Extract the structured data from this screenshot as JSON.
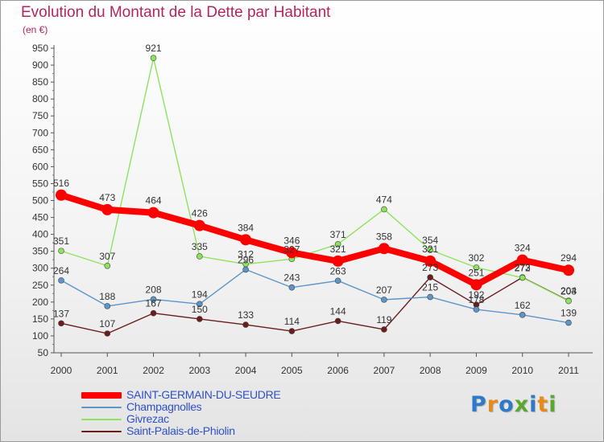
{
  "header": {
    "title": "Evolution du Montant de la Dette par Habitant",
    "subtitle": "(en €)"
  },
  "logo": {
    "text": "Proxiti",
    "letter_colors": [
      "#2e7ac8",
      "#e88a1a",
      "#2e7ac8",
      "#5aa830",
      "#2e7ac8",
      "#e88a1a",
      "#5aa830"
    ]
  },
  "chart_data": {
    "type": "line",
    "title": "Evolution du Montant de la Dette par Habitant",
    "subtitle": "(en €)",
    "xlabel": "",
    "ylabel": "",
    "x": [
      "2000",
      "2001",
      "2002",
      "2003",
      "2004",
      "2005",
      "2006",
      "2007",
      "2008",
      "2009",
      "2010",
      "2011"
    ],
    "y_ticks": [
      50,
      100,
      150,
      200,
      250,
      300,
      350,
      400,
      450,
      500,
      550,
      600,
      650,
      700,
      750,
      800,
      850,
      900,
      950
    ],
    "ylim": [
      50,
      950
    ],
    "grid": false,
    "legend_position": "bottom-left",
    "series": [
      {
        "name": "SAINT-GERMAIN-DU-SEUDRE",
        "color": "#ff0000",
        "values": [
          516,
          473,
          464,
          426,
          384,
          346,
          321,
          358,
          321,
          251,
          324,
          294
        ],
        "emphasis": true
      },
      {
        "name": "Champagnolles",
        "color": "#5c95c8",
        "values": [
          264,
          188,
          208,
          194,
          296,
          243,
          263,
          207,
          215,
          178,
          162,
          139
        ]
      },
      {
        "name": "Givrezac",
        "color": "#8ee35e",
        "values": [
          351,
          307,
          921,
          335,
          312,
          327,
          371,
          474,
          354,
          302,
          272,
          203
        ]
      },
      {
        "name": "Saint-Palais-de-Phiolin",
        "color": "#6b1c1c",
        "values": [
          137,
          107,
          167,
          150,
          133,
          114,
          144,
          119,
          273,
          192,
          273,
          204
        ]
      }
    ]
  }
}
